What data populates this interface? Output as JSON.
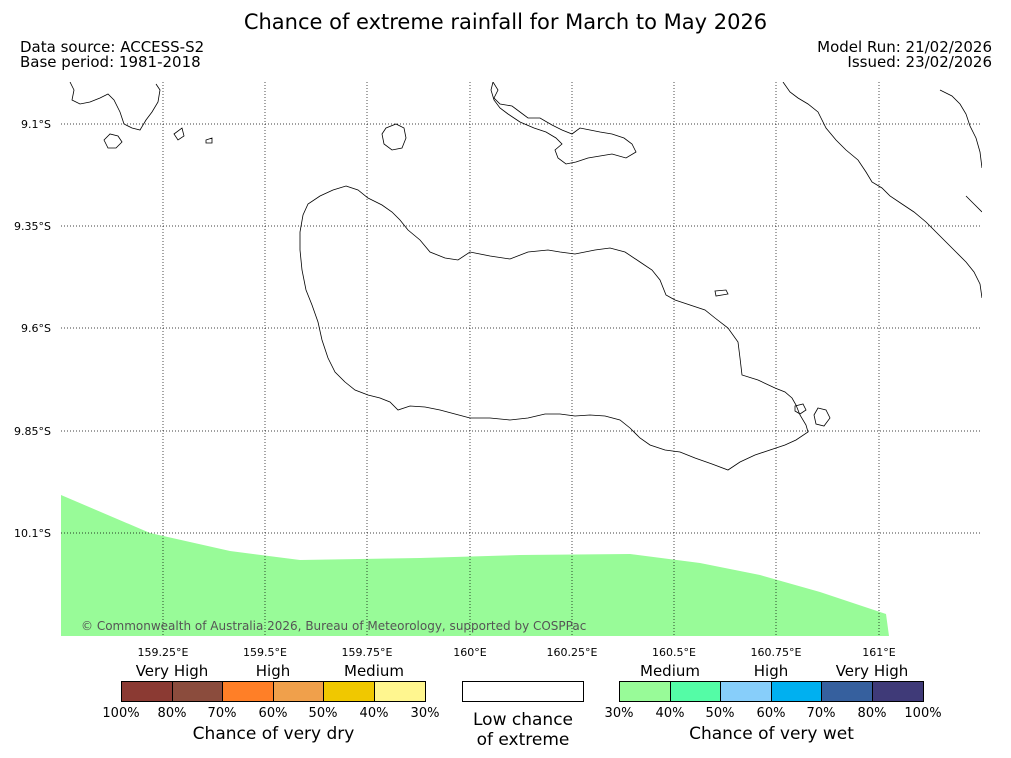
{
  "title": "Chance of extreme rainfall for March to May 2026",
  "meta": {
    "data_source": "Data source: ACCESS-S2",
    "base_period": "Base period: 1981-2018",
    "model_run": "Model Run: 21/02/2026",
    "issued": "Issued: 23/02/2026"
  },
  "axes": {
    "lat_labels": [
      "9.1°S",
      "9.35°S",
      "9.6°S",
      "9.85°S",
      "10.1°S"
    ],
    "lon_labels": [
      "159.25°E",
      "159.5°E",
      "159.75°E",
      "160°E",
      "160.25°E",
      "160.5°E",
      "160.75°E",
      "161°E"
    ]
  },
  "copyright": "© Commonwealth of Australia 2026, Bureau of Meteorology, supported by COSPPac",
  "colors": {
    "very_wet_medium_area": "#98fb98",
    "dry": [
      "#8b3a33",
      "#8b4c3d",
      "#ff7f27",
      "#f0a04b",
      "#f0c800",
      "#fff68f"
    ],
    "wet": [
      "#98fb98",
      "#54fca6",
      "#87cefa",
      "#00b0f0",
      "#36609e",
      "#3f3a78"
    ]
  },
  "legend": {
    "dry": {
      "categories": [
        "Very High",
        "High",
        "Medium"
      ],
      "ticks": [
        "100%",
        "80%",
        "70%",
        "60%",
        "50%",
        "40%",
        "30%"
      ],
      "caption": "Chance of very dry"
    },
    "low": {
      "caption_line1": "Low chance",
      "caption_line2": "of extreme"
    },
    "wet": {
      "categories": [
        "Medium",
        "High",
        "Very High"
      ],
      "ticks": [
        "30%",
        "40%",
        "50%",
        "60%",
        "70%",
        "80%",
        "100%"
      ],
      "caption": "Chance of very wet"
    }
  }
}
